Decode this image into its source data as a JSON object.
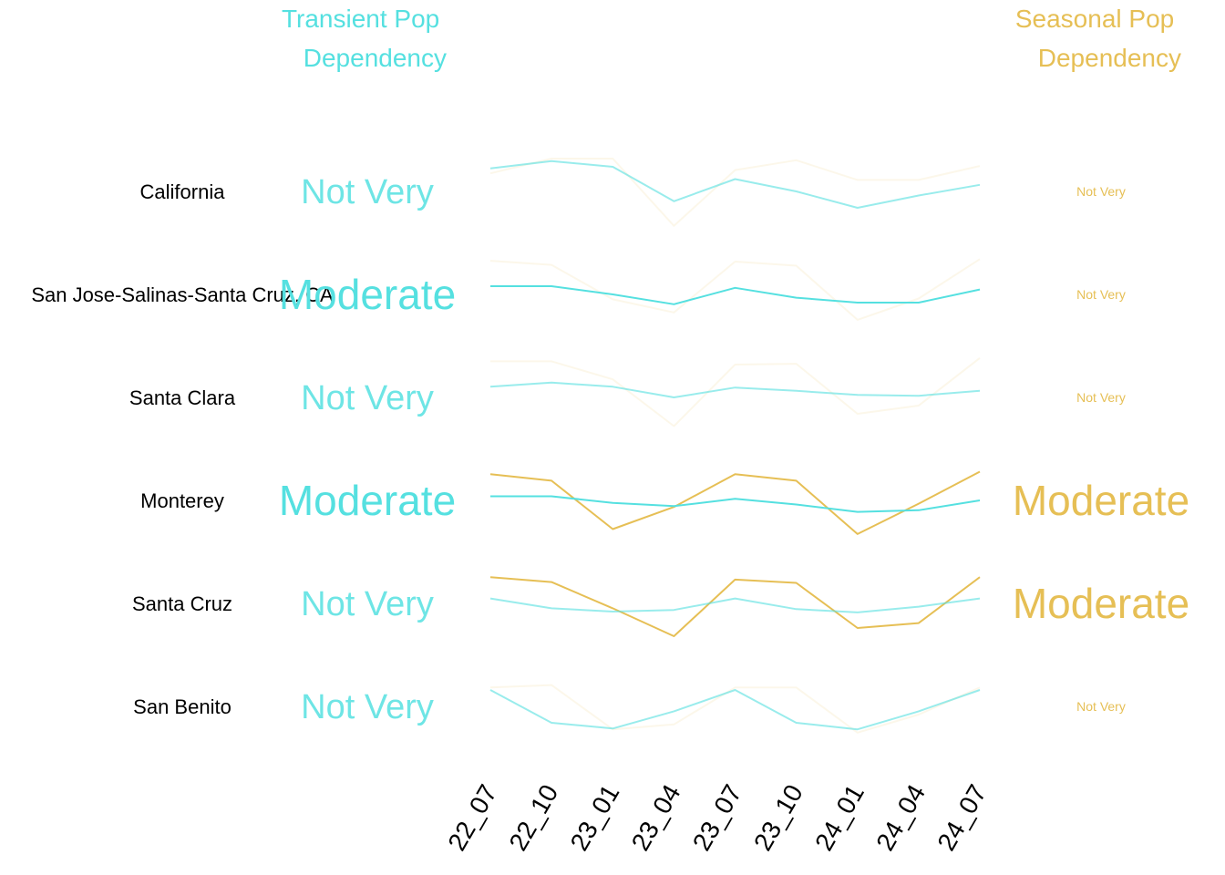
{
  "chart_data": {
    "type": "line",
    "x": [
      "22_07",
      "22_10",
      "23_01",
      "23_04",
      "23_07",
      "23_10",
      "24_01",
      "24_04",
      "24_07"
    ],
    "headers": {
      "transient": "Transient Pop\nDependency",
      "seasonal": "Seasonal Pop\nDependency"
    },
    "colors": {
      "transient": "#55e0e0",
      "seasonal": "#e6bf55"
    },
    "rows": [
      {
        "region": "California",
        "transient_level": "Not Very",
        "seasonal_level": "Not Very",
        "transient": [
          0.78,
          0.87,
          0.8,
          0.38,
          0.65,
          0.5,
          0.3,
          0.45,
          0.58
        ],
        "seasonal": [
          0.72,
          0.9,
          0.9,
          0.08,
          0.76,
          0.88,
          0.64,
          0.64,
          0.81
        ]
      },
      {
        "region": "San Jose-Salinas-Santa Cruz, CA",
        "transient_level": "Moderate",
        "seasonal_level": "Not Very",
        "transient": [
          0.6,
          0.6,
          0.5,
          0.38,
          0.58,
          0.46,
          0.4,
          0.4,
          0.56
        ],
        "seasonal": [
          0.91,
          0.86,
          0.44,
          0.28,
          0.9,
          0.85,
          0.19,
          0.45,
          0.93
        ]
      },
      {
        "region": "Santa Clara",
        "transient_level": "Not Very",
        "seasonal_level": "Not Very",
        "transient": [
          0.63,
          0.68,
          0.63,
          0.5,
          0.62,
          0.58,
          0.53,
          0.52,
          0.58
        ],
        "seasonal": [
          0.94,
          0.94,
          0.72,
          0.15,
          0.9,
          0.91,
          0.3,
          0.4,
          0.98
        ]
      },
      {
        "region": "Monterey",
        "transient_level": "Moderate",
        "seasonal_level": "Moderate",
        "transient": [
          0.55,
          0.55,
          0.47,
          0.43,
          0.52,
          0.45,
          0.36,
          0.38,
          0.5
        ],
        "seasonal": [
          0.82,
          0.74,
          0.15,
          0.42,
          0.82,
          0.74,
          0.09,
          0.46,
          0.85
        ]
      },
      {
        "region": "Santa Cruz",
        "transient_level": "Not Very",
        "seasonal_level": "Moderate",
        "transient": [
          0.56,
          0.44,
          0.4,
          0.42,
          0.56,
          0.43,
          0.39,
          0.46,
          0.56
        ],
        "seasonal": [
          0.82,
          0.76,
          0.44,
          0.1,
          0.79,
          0.75,
          0.2,
          0.26,
          0.82
        ]
      },
      {
        "region": "San Benito",
        "transient_level": "Not Very",
        "seasonal_level": "Not Very",
        "transient": [
          0.7,
          0.3,
          0.23,
          0.44,
          0.7,
          0.3,
          0.22,
          0.44,
          0.7
        ],
        "seasonal": [
          0.73,
          0.76,
          0.22,
          0.28,
          0.73,
          0.73,
          0.18,
          0.4,
          0.73
        ]
      }
    ]
  }
}
